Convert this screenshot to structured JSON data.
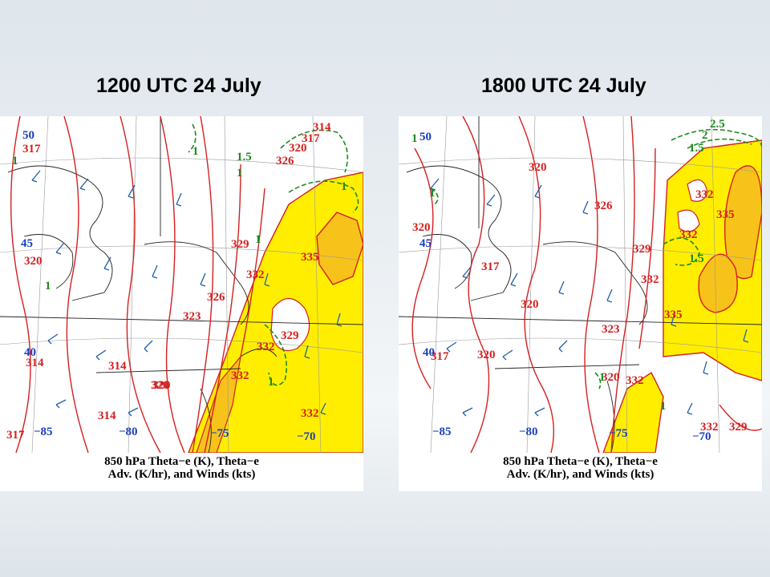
{
  "slide": {
    "left_title": "1200 UTC 24 July",
    "right_title": "1800 UTC 24 July"
  },
  "panels": [
    {
      "id": "left",
      "caption_line1": "850 hPa Theta−e (K), Theta−e",
      "caption_line2": "Adv. (K/hr), and Winds (kts)",
      "theta_e_labels": [
        "317",
        "320",
        "314",
        "314",
        "314",
        "320",
        "323",
        "326",
        "329",
        "332",
        "335",
        "332",
        "329",
        "320",
        "317",
        "314",
        "317",
        "320",
        "326",
        "332",
        "332"
      ],
      "advection_labels": [
        "1",
        "1",
        "1",
        "1.5",
        "1",
        "1",
        "1",
        "1"
      ],
      "longitude_labels": [
        "−85",
        "−80",
        "−75",
        "−70"
      ],
      "latitude_labels": [
        "50",
        "45",
        "40"
      ]
    },
    {
      "id": "right",
      "caption_line1": "850 hPa Theta−e (K), Theta−e",
      "caption_line2": "Adv. (K/hr), and Winds (kts)",
      "theta_e_labels": [
        "320",
        "326",
        "320",
        "317",
        "320",
        "317",
        "320",
        "323",
        "329",
        "332",
        "332",
        "335",
        "332",
        "335",
        "332",
        "320",
        "332",
        "329"
      ],
      "advection_labels": [
        "1",
        "1",
        "1.5",
        "1.5",
        "2.5",
        "2",
        "1",
        "1"
      ],
      "longitude_labels": [
        "−85",
        "−80",
        "−75",
        "−70"
      ],
      "latitude_labels": [
        "50",
        "45",
        "40"
      ]
    }
  ],
  "colors": {
    "isentrope": "#d42020",
    "advection_contour": "#1f8a1f",
    "wind_barb": "#1f5fa8",
    "high_theta_e_fill": "#ffee00",
    "highest_theta_e_fill": "#f7c21a",
    "background": "#e9eef2"
  }
}
